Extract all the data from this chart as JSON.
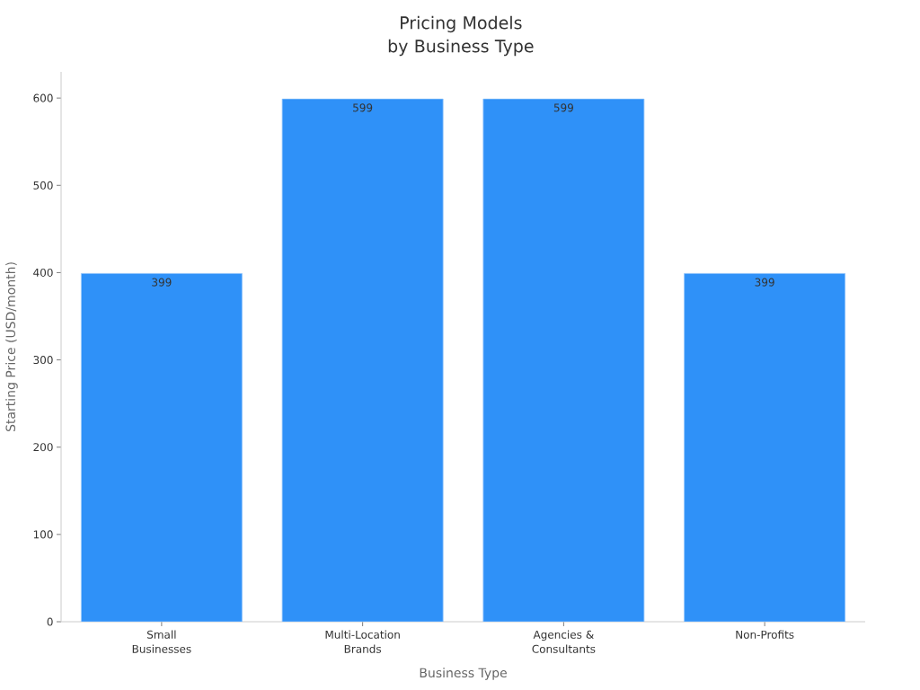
{
  "chart_data": {
    "type": "bar",
    "title": "Pricing Models by Business Type",
    "xlabel": "Business Type",
    "ylabel": "Starting Price (USD/month)",
    "categories": [
      "Small Businesses",
      "Multi-Location Brands",
      "Agencies & Consultants",
      "Non-Profits"
    ],
    "values": [
      399,
      599,
      599,
      399
    ],
    "color": "#2f91f8",
    "ylim": [
      0,
      630
    ],
    "yticks": [
      0,
      100,
      200,
      300,
      400,
      500,
      600
    ],
    "data_labels": true
  }
}
